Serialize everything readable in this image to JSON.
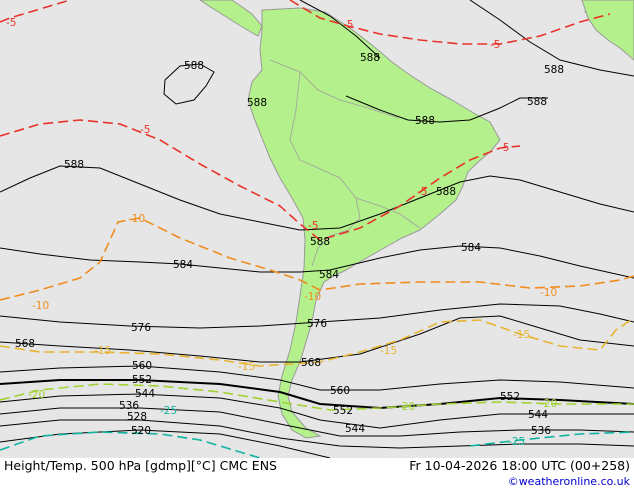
{
  "chart_title": "Height/Temp. 500 hPa [gdmp][°C] CMC ENS",
  "valid_time": "Fr 10-04-2026 18:00 UTC (00+258)",
  "credit": "©weatheronline.co.uk",
  "colors": {
    "ocean": "#e6e6e6",
    "land": "#b4f08c",
    "coast": "#999999",
    "height_contour": "#000000",
    "temp_minus5": "#e8332a",
    "temp_minus10": "#f08c1e",
    "temp_minus15": "#e8b432",
    "temp_minus20": "#a0d232",
    "temp_minus25": "#14b4a0"
  },
  "height_labels": {
    "h588_nw": "588",
    "h588_sa1": "588",
    "h588_sa2": "588",
    "h588_ne1": "588",
    "h588_ne2": "588",
    "h588_br": "588",
    "h588_w": "588",
    "h588_e": "588",
    "h588_c": "588",
    "h584_w": "584",
    "h584_c": "584",
    "h584_e": "584",
    "h576_w": "576",
    "h576_c": "576",
    "h568_w": "568",
    "h568_c": "568",
    "h560_w": "560",
    "h560_c": "560",
    "h552_w": "552",
    "h552_c": "552",
    "h552_e": "552",
    "h544_w": "544",
    "h544_c": "544",
    "h544_e": "544",
    "h536_w": "536",
    "h536_e": "536",
    "h528_w": "528",
    "h520_w": "520"
  },
  "temp_labels": {
    "t5_nw": "-5",
    "t5_n": "-5",
    "t5_ne": "-5",
    "t5_w": "-5",
    "t5_e": "-5",
    "t5_c": "-5",
    "t5_c2": "-5",
    "t10_w": "-10",
    "t10_w2": "-10",
    "t10_c": "-10",
    "t10_e": "-10",
    "t15_w": "-15",
    "t15_c": "-15",
    "t15_c2": "-15",
    "t15_e": "-15",
    "t20_w": "-20",
    "t20_c": "-20",
    "t20_e": "-20",
    "t25_w": "-25",
    "t25_e": "-25"
  }
}
